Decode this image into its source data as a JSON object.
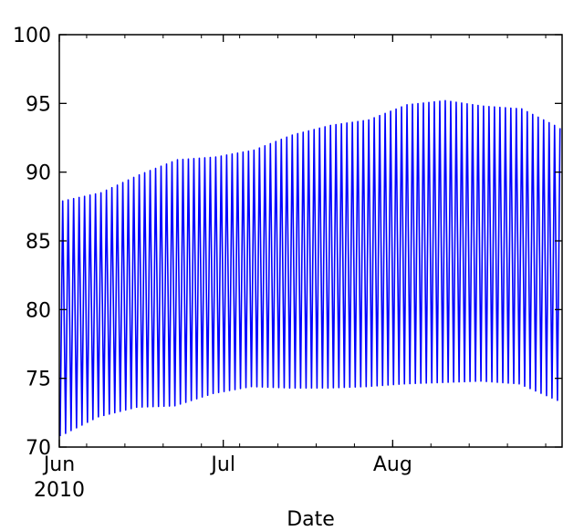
{
  "chart_data": {
    "type": "line",
    "title": "",
    "xlabel": "Date",
    "ylabel": "",
    "x_range": [
      "2010-06-01",
      "2010-08-31"
    ],
    "ylim": [
      70,
      100
    ],
    "y_ticks": [
      70,
      75,
      80,
      85,
      90,
      95,
      100
    ],
    "x_ticks": [
      {
        "date": "2010-06-01",
        "label": "Jun",
        "sublabel": "2010"
      },
      {
        "date": "2010-07-01",
        "label": "Jul",
        "sublabel": ""
      },
      {
        "date": "2010-08-01",
        "label": "Aug",
        "sublabel": ""
      }
    ],
    "grid": false,
    "legend": "none",
    "line_color": "#0000ff",
    "series_description_note_free": true,
    "series": [
      {
        "sampling": "daily max / min (diurnal cycle)",
        "x": [
          "2010-06-01",
          "2010-06-08",
          "2010-06-15",
          "2010-06-22",
          "2010-06-29",
          "2010-07-06",
          "2010-07-13",
          "2010-07-20",
          "2010-07-27",
          "2010-08-03",
          "2010-08-10",
          "2010-08-17",
          "2010-08-24",
          "2010-08-31"
        ],
        "daily_high": [
          87.9,
          88.5,
          89.8,
          90.9,
          91.1,
          91.6,
          92.7,
          93.4,
          93.8,
          94.9,
          95.2,
          94.8,
          94.6,
          93.2
        ],
        "daily_low": [
          70.8,
          72.2,
          72.9,
          73.0,
          73.9,
          74.4,
          74.3,
          74.3,
          74.4,
          74.6,
          74.7,
          74.8,
          74.6,
          73.4
        ]
      }
    ]
  }
}
